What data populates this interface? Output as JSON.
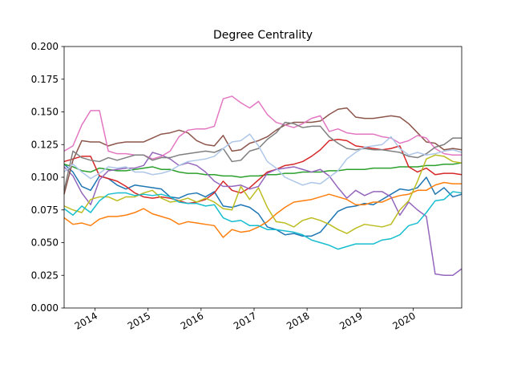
{
  "chart_data": {
    "type": "line",
    "title": "Degree Centrality",
    "xlabel": "",
    "ylabel": "",
    "x": [
      "2013-06",
      "2013-08",
      "2013-10",
      "2013-12",
      "2014-02",
      "2014-04",
      "2014-06",
      "2014-08",
      "2014-10",
      "2014-12",
      "2015-02",
      "2015-04",
      "2015-06",
      "2015-08",
      "2015-10",
      "2015-12",
      "2016-02",
      "2016-04",
      "2016-06",
      "2016-08",
      "2016-10",
      "2016-12",
      "2017-02",
      "2017-04",
      "2017-06",
      "2017-08",
      "2017-10",
      "2017-12",
      "2018-02",
      "2018-04",
      "2018-06",
      "2018-08",
      "2018-10",
      "2018-12",
      "2019-02",
      "2019-04",
      "2019-06",
      "2019-08",
      "2019-10",
      "2019-12",
      "2020-02",
      "2020-04",
      "2020-06",
      "2020-08",
      "2020-10",
      "2020-12"
    ],
    "xlim": [
      "2013-06-01",
      "2020-12-01"
    ],
    "ylim": [
      0.0,
      0.2
    ],
    "x_ticks": [
      "2014",
      "2015",
      "2016",
      "2017",
      "2018",
      "2019",
      "2020"
    ],
    "y_ticks": [
      "0.000",
      "0.025",
      "0.050",
      "0.075",
      "0.100",
      "0.125",
      "0.150",
      "0.175",
      "0.200"
    ],
    "grid": false,
    "series": [
      {
        "color": "#1f77b4",
        "values": [
          0.11,
          0.104,
          0.093,
          0.09,
          0.101,
          0.099,
          0.094,
          0.091,
          0.094,
          0.093,
          0.092,
          0.091,
          0.085,
          0.084,
          0.087,
          0.088,
          0.085,
          0.089,
          0.078,
          0.077,
          0.079,
          0.077,
          0.072,
          0.062,
          0.06,
          0.056,
          0.057,
          0.055,
          0.055,
          0.058,
          0.066,
          0.074,
          0.077,
          0.078,
          0.08,
          0.079,
          0.083,
          0.087,
          0.091,
          0.09,
          0.092,
          0.1,
          0.087,
          0.092,
          0.085,
          0.087
        ]
      },
      {
        "color": "#ff7f0e",
        "values": [
          0.069,
          0.064,
          0.065,
          0.063,
          0.068,
          0.07,
          0.07,
          0.071,
          0.073,
          0.076,
          0.072,
          0.07,
          0.068,
          0.064,
          0.066,
          0.065,
          0.064,
          0.063,
          0.054,
          0.06,
          0.058,
          0.059,
          0.062,
          0.066,
          0.072,
          0.077,
          0.081,
          0.082,
          0.083,
          0.085,
          0.087,
          0.085,
          0.083,
          0.079,
          0.079,
          0.081,
          0.081,
          0.084,
          0.086,
          0.087,
          0.09,
          0.09,
          0.094,
          0.096,
          0.095,
          0.095
        ]
      },
      {
        "color": "#2ca02c",
        "values": [
          0.11,
          0.108,
          0.105,
          0.104,
          0.107,
          0.106,
          0.105,
          0.105,
          0.106,
          0.107,
          0.108,
          0.106,
          0.106,
          0.104,
          0.103,
          0.103,
          0.102,
          0.102,
          0.101,
          0.101,
          0.1,
          0.101,
          0.101,
          0.102,
          0.102,
          0.103,
          0.103,
          0.104,
          0.104,
          0.104,
          0.105,
          0.105,
          0.106,
          0.106,
          0.106,
          0.107,
          0.107,
          0.107,
          0.108,
          0.108,
          0.108,
          0.109,
          0.109,
          0.11,
          0.11,
          0.111
        ]
      },
      {
        "color": "#d62728",
        "values": [
          0.112,
          0.114,
          0.116,
          0.116,
          0.101,
          0.099,
          0.097,
          0.093,
          0.088,
          0.085,
          0.084,
          0.085,
          0.084,
          0.082,
          0.08,
          0.081,
          0.083,
          0.088,
          0.097,
          0.09,
          0.088,
          0.092,
          0.098,
          0.104,
          0.106,
          0.109,
          0.11,
          0.112,
          0.116,
          0.121,
          0.128,
          0.129,
          0.128,
          0.124,
          0.123,
          0.122,
          0.121,
          0.122,
          0.124,
          0.108,
          0.104,
          0.107,
          0.102,
          0.103,
          0.103,
          0.102
        ]
      },
      {
        "color": "#9467bd",
        "values": [
          0.108,
          0.101,
          0.088,
          0.079,
          0.098,
          0.105,
          0.106,
          0.107,
          0.107,
          0.109,
          0.119,
          0.117,
          0.114,
          0.109,
          0.111,
          0.109,
          0.104,
          0.097,
          0.093,
          0.093,
          0.094,
          0.091,
          0.093,
          0.103,
          0.106,
          0.107,
          0.108,
          0.106,
          0.104,
          0.106,
          0.101,
          0.092,
          0.084,
          0.09,
          0.086,
          0.089,
          0.089,
          0.085,
          0.071,
          0.081,
          0.075,
          0.07,
          0.026,
          0.025,
          0.025,
          0.03
        ]
      },
      {
        "color": "#8c564b",
        "values": [
          0.087,
          0.113,
          0.128,
          0.127,
          0.127,
          0.124,
          0.126,
          0.127,
          0.127,
          0.127,
          0.13,
          0.133,
          0.134,
          0.136,
          0.134,
          0.128,
          0.125,
          0.124,
          0.132,
          0.12,
          0.121,
          0.126,
          0.128,
          0.131,
          0.136,
          0.14,
          0.142,
          0.142,
          0.142,
          0.143,
          0.148,
          0.152,
          0.153,
          0.146,
          0.145,
          0.145,
          0.146,
          0.147,
          0.146,
          0.141,
          0.134,
          0.127,
          0.126,
          0.121,
          0.122,
          0.121
        ]
      },
      {
        "color": "#e377c2",
        "values": [
          0.12,
          0.124,
          0.14,
          0.151,
          0.151,
          0.12,
          0.118,
          0.118,
          0.117,
          0.117,
          0.114,
          0.116,
          0.12,
          0.131,
          0.136,
          0.137,
          0.137,
          0.139,
          0.16,
          0.162,
          0.157,
          0.153,
          0.158,
          0.148,
          0.142,
          0.14,
          0.138,
          0.141,
          0.145,
          0.147,
          0.135,
          0.137,
          0.134,
          0.133,
          0.133,
          0.133,
          0.131,
          0.13,
          0.126,
          0.128,
          0.132,
          0.13,
          0.122,
          0.118,
          0.117,
          0.117
        ]
      },
      {
        "color": "#7f7f7f",
        "values": [
          0.09,
          0.12,
          0.115,
          0.113,
          0.112,
          0.115,
          0.113,
          0.115,
          0.117,
          0.117,
          0.113,
          0.115,
          0.115,
          0.117,
          0.118,
          0.119,
          0.12,
          0.119,
          0.122,
          0.112,
          0.113,
          0.12,
          0.122,
          0.129,
          0.134,
          0.142,
          0.141,
          0.138,
          0.139,
          0.139,
          0.131,
          0.126,
          0.122,
          0.121,
          0.122,
          0.121,
          0.121,
          0.12,
          0.119,
          0.116,
          0.115,
          0.118,
          0.123,
          0.125,
          0.13,
          0.13
        ]
      },
      {
        "color": "#bcbd22",
        "values": [
          0.078,
          0.075,
          0.073,
          0.083,
          0.085,
          0.085,
          0.082,
          0.085,
          0.085,
          0.088,
          0.09,
          0.084,
          0.081,
          0.082,
          0.084,
          0.081,
          0.084,
          0.081,
          0.076,
          0.075,
          0.093,
          0.083,
          0.092,
          0.077,
          0.066,
          0.065,
          0.062,
          0.067,
          0.069,
          0.067,
          0.064,
          0.06,
          0.057,
          0.061,
          0.064,
          0.063,
          0.062,
          0.064,
          0.075,
          0.082,
          0.097,
          0.114,
          0.117,
          0.116,
          0.112,
          0.111
        ]
      },
      {
        "color": "#17becf",
        "values": [
          0.076,
          0.071,
          0.078,
          0.073,
          0.082,
          0.087,
          0.088,
          0.088,
          0.086,
          0.087,
          0.086,
          0.087,
          0.085,
          0.081,
          0.08,
          0.08,
          0.078,
          0.079,
          0.069,
          0.066,
          0.067,
          0.063,
          0.063,
          0.06,
          0.06,
          0.059,
          0.058,
          0.056,
          0.052,
          0.05,
          0.048,
          0.045,
          0.047,
          0.049,
          0.049,
          0.049,
          0.052,
          0.053,
          0.056,
          0.063,
          0.065,
          0.073,
          0.082,
          0.083,
          0.089,
          0.088
        ]
      },
      {
        "color": "#aec7e8",
        "values": [
          0.104,
          0.11,
          0.104,
          0.099,
          0.103,
          0.108,
          0.107,
          0.108,
          0.104,
          0.104,
          0.102,
          0.103,
          0.105,
          0.109,
          0.112,
          0.113,
          0.114,
          0.116,
          0.122,
          0.127,
          0.128,
          0.133,
          0.124,
          0.112,
          0.107,
          0.1,
          0.097,
          0.094,
          0.096,
          0.095,
          0.1,
          0.105,
          0.114,
          0.119,
          0.123,
          0.124,
          0.125,
          0.131,
          0.122,
          0.117,
          0.119,
          0.117,
          0.118,
          0.12,
          0.121,
          0.119
        ]
      }
    ]
  }
}
